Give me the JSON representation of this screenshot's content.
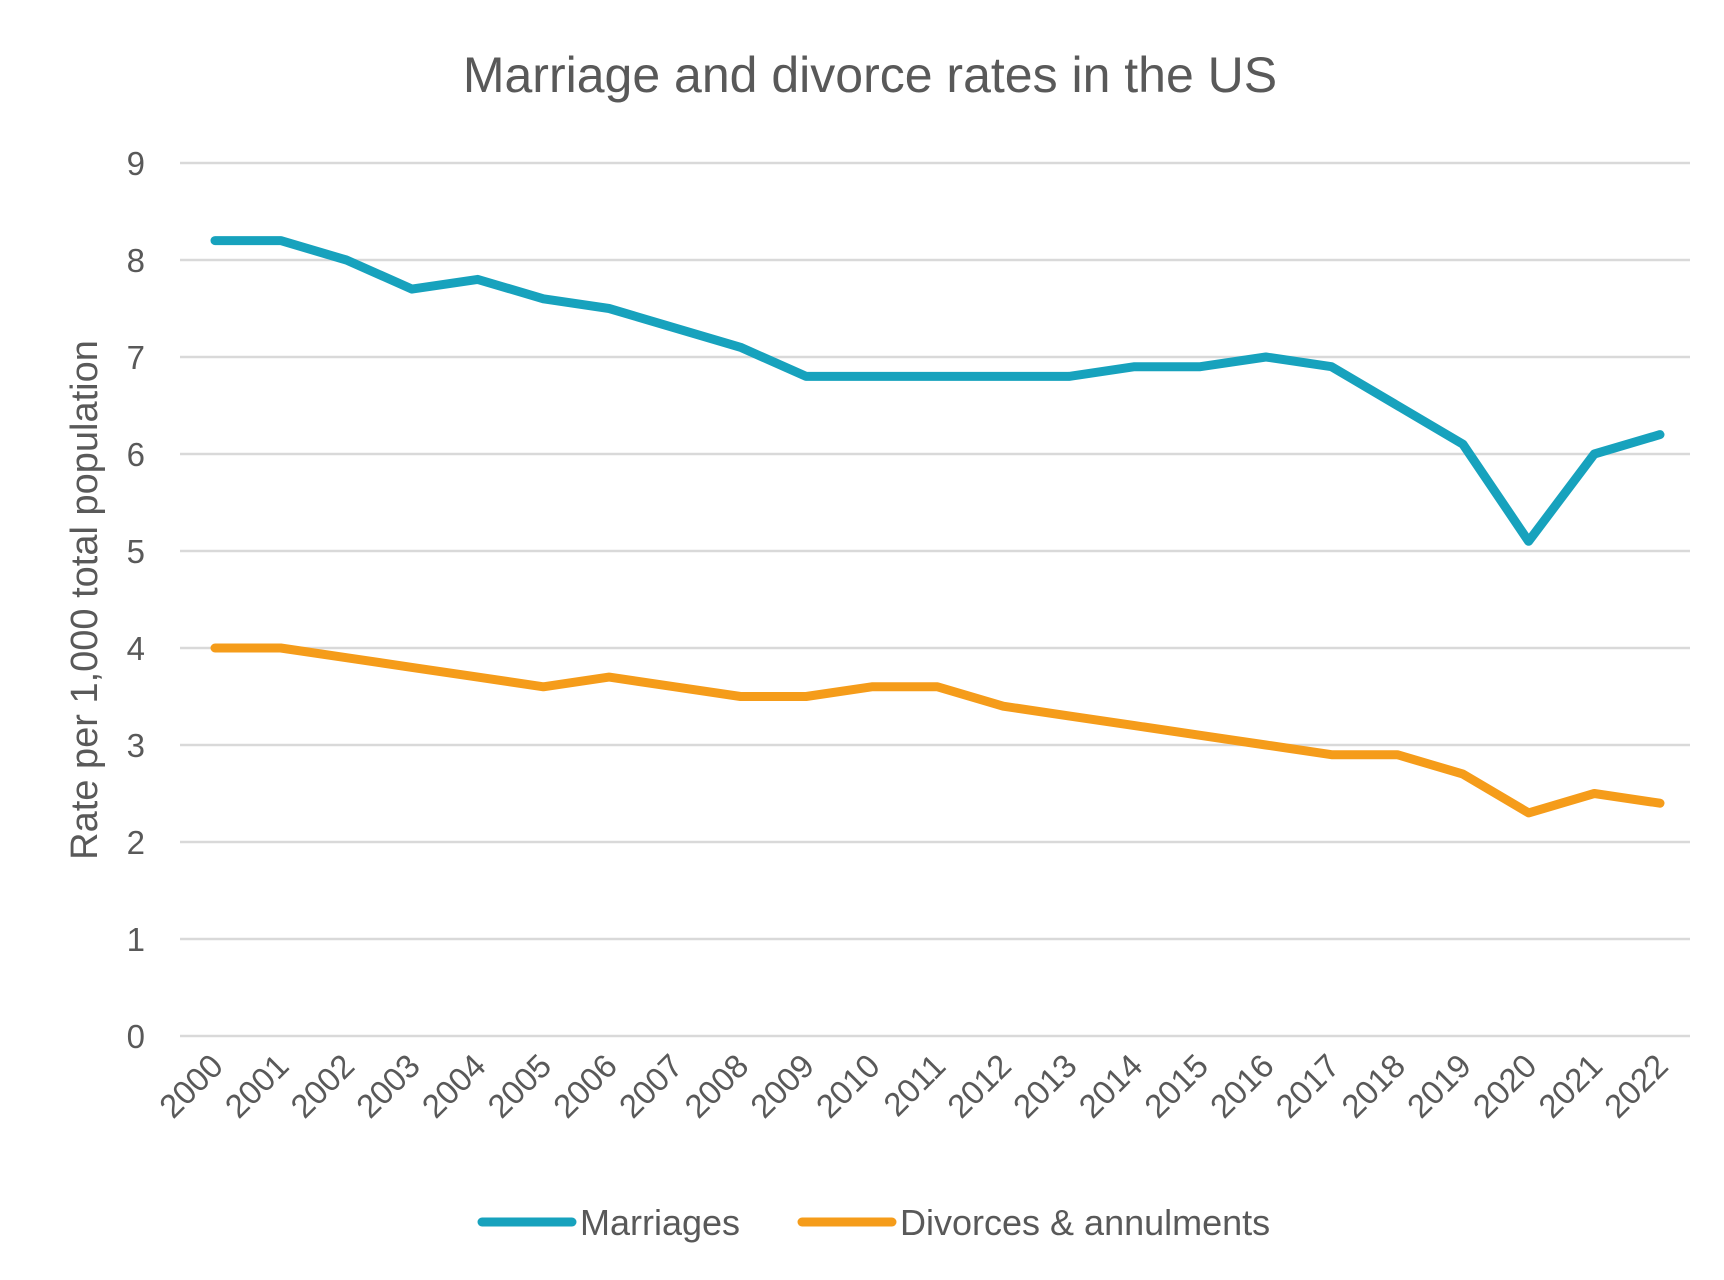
{
  "chart_data": {
    "type": "line",
    "title": "Marriage and divorce rates in the US",
    "xlabel": "",
    "ylabel": "Rate per 1,000 total population",
    "ylim": [
      0,
      9
    ],
    "yticks": [
      "0",
      "1",
      "2",
      "3",
      "4",
      "5",
      "6",
      "7",
      "8",
      "9"
    ],
    "grid": true,
    "legend_position": "bottom",
    "categories": [
      "2000",
      "2001",
      "2002",
      "2003",
      "2004",
      "2005",
      "2006",
      "2007",
      "2008",
      "2009",
      "2010",
      "2011",
      "2012",
      "2013",
      "2014",
      "2015",
      "2016",
      "2017",
      "2018",
      "2019",
      "2020",
      "2021",
      "2022"
    ],
    "series": [
      {
        "name": "Marriages",
        "color": "#17a2bd",
        "values": [
          8.2,
          8.2,
          8.0,
          7.7,
          7.8,
          7.6,
          7.5,
          7.3,
          7.1,
          6.8,
          6.8,
          6.8,
          6.8,
          6.8,
          6.9,
          6.9,
          7.0,
          6.9,
          6.5,
          6.1,
          5.1,
          6.0,
          6.2
        ]
      },
      {
        "name": "Divorces & annulments",
        "color": "#f59c1a",
        "values": [
          4.0,
          4.0,
          3.9,
          3.8,
          3.7,
          3.6,
          3.7,
          3.6,
          3.5,
          3.5,
          3.6,
          3.6,
          3.4,
          3.3,
          3.2,
          3.1,
          3.0,
          2.9,
          2.9,
          2.7,
          2.3,
          2.5,
          2.4
        ]
      }
    ]
  }
}
